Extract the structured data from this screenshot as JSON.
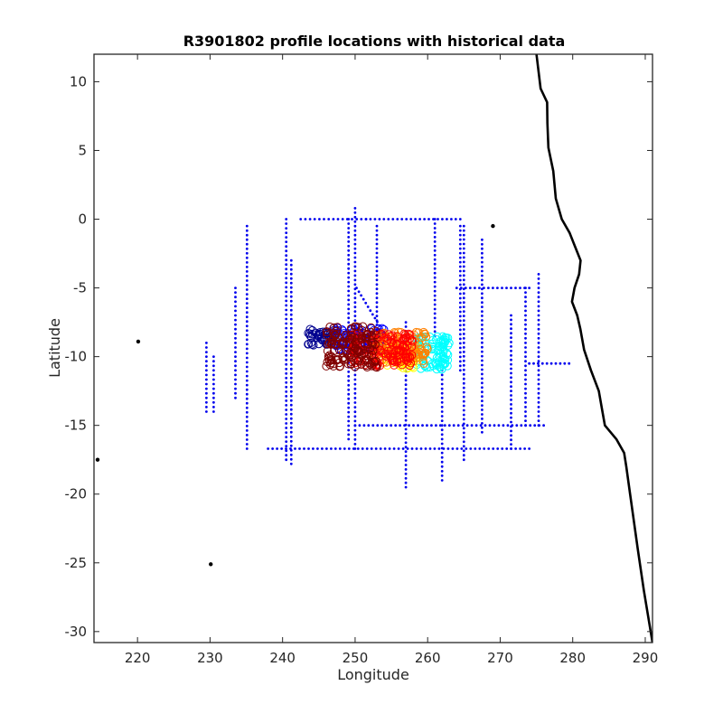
{
  "chart_data": {
    "type": "scatter",
    "title": "R3901802 profile locations with historical data",
    "xlabel": "Longitude",
    "ylabel": "Latitude",
    "xlim": [
      214,
      291
    ],
    "ylim": [
      -30.8,
      12
    ],
    "xticks": [
      220,
      230,
      240,
      250,
      260,
      270,
      280,
      290
    ],
    "yticks": [
      10,
      5,
      0,
      -5,
      -10,
      -15,
      -20,
      -25,
      -30
    ],
    "grid": false,
    "legend": "none",
    "colors": {
      "historical": "#0000ee",
      "coast": "#000000",
      "profile_colormap": [
        "#00008f",
        "#0000ff",
        "#00ffff",
        "#ffff00",
        "#ff8000",
        "#ff0000",
        "#800000"
      ]
    },
    "series": [
      {
        "kind": "historical_points",
        "lines": [
          {
            "x": [
              242.5,
              251.5
            ],
            "y": [
              0,
              0
            ]
          },
          {
            "x": [
              251.5,
              264.5
            ],
            "y": [
              0,
              0
            ]
          },
          {
            "x": [
              250,
              250
            ],
            "y": [
              0.8,
              -9
            ]
          },
          {
            "x": [
              250,
              250
            ],
            "y": [
              -11,
              -16.7
            ]
          },
          {
            "x": [
              257,
              257
            ],
            "y": [
              -7.5,
              -19.5
            ]
          },
          {
            "x": [
              240.5,
              240.5
            ],
            "y": [
              0,
              -17.5
            ]
          },
          {
            "x": [
              235.1,
              235.1
            ],
            "y": [
              -0.5,
              -16.7
            ]
          },
          {
            "x": [
              241.2,
              241.2
            ],
            "y": [
              -3,
              -17.8
            ]
          },
          {
            "x": [
              249.1,
              249.1
            ],
            "y": [
              0,
              -16
            ]
          },
          {
            "x": [
              253,
              253
            ],
            "y": [
              -0.5,
              -9
            ]
          },
          {
            "x": [
              261,
              261
            ],
            "y": [
              0,
              -8.5
            ]
          },
          {
            "x": [
              262,
              262
            ],
            "y": [
              -11,
              -19
            ]
          },
          {
            "x": [
              264.5,
              264.5
            ],
            "y": [
              -0.5,
              -11
            ]
          },
          {
            "x": [
              265,
              265
            ],
            "y": [
              -0.5,
              -17.5
            ]
          },
          {
            "x": [
              267.5,
              267.5
            ],
            "y": [
              -1.5,
              -15.5
            ]
          },
          {
            "x": [
              271.5,
              271.5
            ],
            "y": [
              -7,
              -16.7
            ]
          },
          {
            "x": [
              273.5,
              273.5
            ],
            "y": [
              -5,
              -15
            ]
          },
          {
            "x": [
              275.3,
              275.3
            ],
            "y": [
              -4,
              -15
            ]
          },
          {
            "x": [
              238,
              274
            ],
            "y": [
              -16.7,
              -16.7
            ]
          },
          {
            "x": [
              250,
              276
            ],
            "y": [
              -15,
              -15
            ]
          },
          {
            "x": [
              264,
              274
            ],
            "y": [
              -5,
              -5
            ]
          },
          {
            "x": [
              274,
              279.5
            ],
            "y": [
              -10.5,
              -10.5
            ]
          },
          {
            "x": [
              250.2,
              254
            ],
            "y": [
              -5,
              -8.3
            ]
          },
          {
            "x": [
              233.5,
              233.5
            ],
            "y": [
              -5,
              -13
            ]
          },
          {
            "x": [
              229.5,
              229.5
            ],
            "y": [
              -9,
              -14
            ]
          },
          {
            "x": [
              230.5,
              230.5
            ],
            "y": [
              -10,
              -14
            ]
          }
        ]
      },
      {
        "kind": "float_profiles",
        "clusters": [
          {
            "x": [
              243.5,
              247.5
            ],
            "y": [
              -8,
              -9.2
            ],
            "color_index": 0
          },
          {
            "x": [
              247,
              254
            ],
            "y": [
              -7.9,
              -9.6
            ],
            "color_index": 1
          },
          {
            "x": [
              258.5,
              263
            ],
            "y": [
              -8.5,
              -11
            ],
            "color_index": 2
          },
          {
            "x": [
              254,
              258.5
            ],
            "y": [
              -9.2,
              -10.9
            ],
            "color_index": 3
          },
          {
            "x": [
              252.5,
              260
            ],
            "y": [
              -8.2,
              -10.5
            ],
            "color_index": 4
          },
          {
            "x": [
              249.5,
              258
            ],
            "y": [
              -8.3,
              -10.7
            ],
            "color_index": 5
          },
          {
            "x": [
              246,
              253
            ],
            "y": [
              -7.8,
              -10.8
            ],
            "color_index": 6
          }
        ]
      },
      {
        "kind": "coastline",
        "x": [
          291,
          290,
          288.8,
          288,
          287.5,
          287,
          286,
          284.5,
          284,
          283.5,
          282.5,
          281.5,
          281,
          280.5,
          280,
          280.3,
          280.8,
          281,
          280.5,
          279.5,
          278.5,
          277.5,
          277.2,
          276.8,
          276.5,
          276.3,
          275.5,
          275
        ],
        "y": [
          -30.8,
          -27,
          -24,
          -20,
          -18,
          -17,
          -16,
          -15,
          -14,
          -12.5,
          -11,
          -9.5,
          -8,
          -7,
          -6,
          -5,
          -4,
          -3,
          -2,
          -1,
          0,
          1.5,
          3.5,
          5.2,
          7,
          8.5,
          9.5,
          12
        ],
        "islands": [
          {
            "x": 269,
            "y": -0.5
          },
          {
            "x": 220.1,
            "y": -8.9
          },
          {
            "x": 214.5,
            "y": -17.5
          },
          {
            "x": 230.1,
            "y": -25.1
          }
        ]
      }
    ]
  }
}
